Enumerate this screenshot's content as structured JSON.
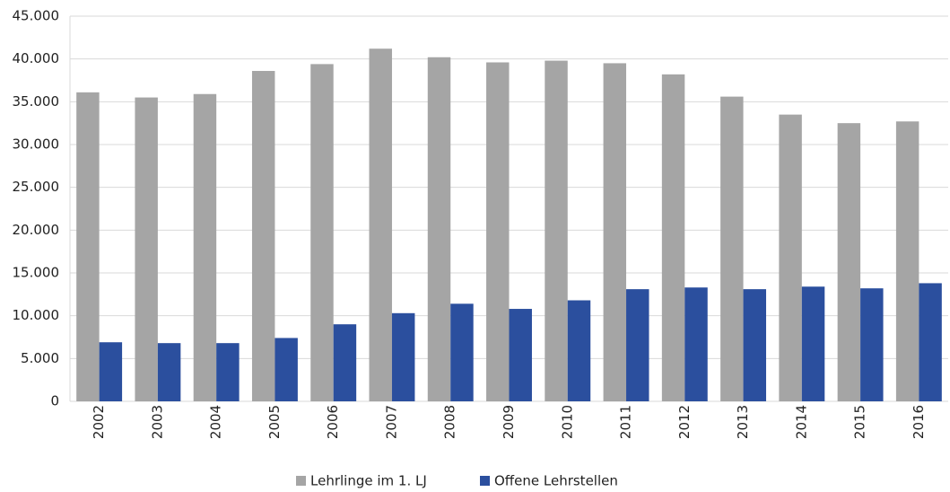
{
  "chart_data": {
    "type": "bar",
    "categories": [
      "2002",
      "2003",
      "2004",
      "2005",
      "2006",
      "2007",
      "2008",
      "2009",
      "2010",
      "2011",
      "2012",
      "2013",
      "2014",
      "2015",
      "2016"
    ],
    "series": [
      {
        "name": "Lehrlinge im 1. LJ",
        "color": "#a5a5a5",
        "values": [
          36100,
          35500,
          35900,
          38600,
          39400,
          41200,
          40200,
          39600,
          39800,
          39500,
          38200,
          35600,
          33500,
          32500,
          32700
        ]
      },
      {
        "name": "Offene Lehrstellen",
        "color": "#2b4f9e",
        "values": [
          6900,
          6800,
          6800,
          7400,
          9000,
          10300,
          11400,
          10800,
          11800,
          13100,
          13300,
          13100,
          13400,
          13200,
          13800
        ]
      }
    ],
    "ylim": [
      0,
      45000
    ],
    "yticks": [
      0,
      {
        "value": 5000,
        "label": "5.000"
      },
      {
        "value": 10000,
        "label": "10.000"
      },
      {
        "value": 15000,
        "label": "15.000"
      },
      {
        "value": 20000,
        "label": "20.000"
      },
      {
        "value": 25000,
        "label": "25.000"
      },
      {
        "value": 30000,
        "label": "30.000"
      },
      {
        "value": 35000,
        "label": "35.000"
      },
      {
        "value": 40000,
        "label": "40.000"
      },
      {
        "value": 45000,
        "label": "45.000"
      }
    ],
    "grid": true,
    "legend": "bottom"
  }
}
